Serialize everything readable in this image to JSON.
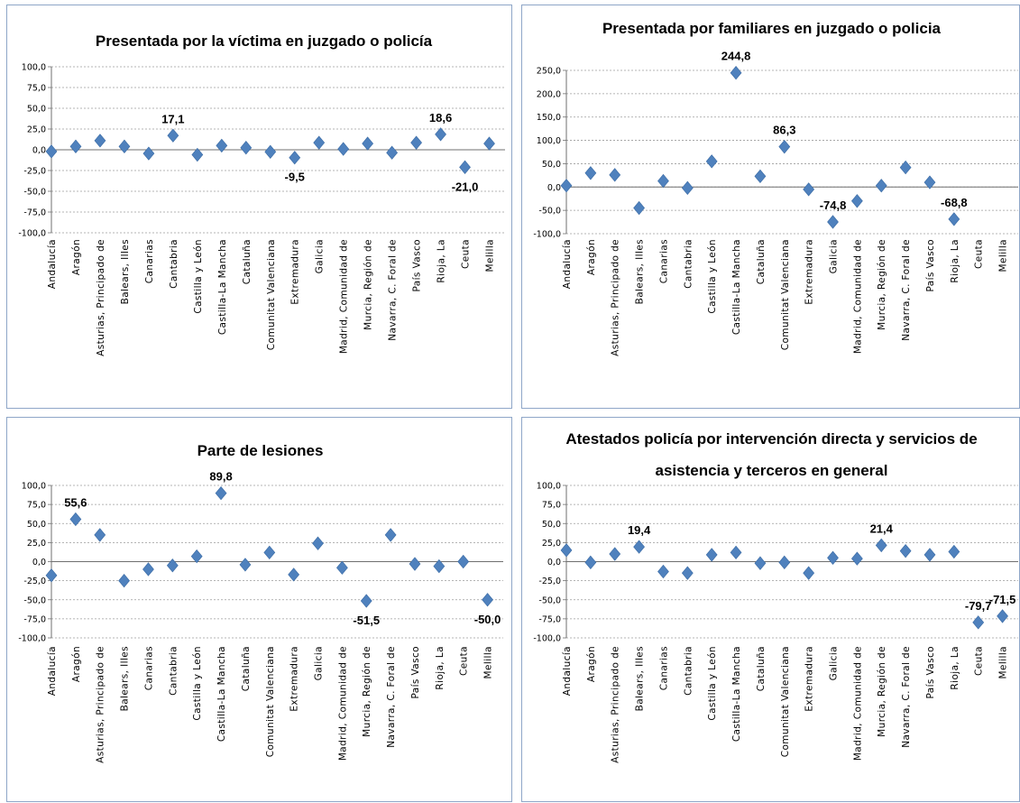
{
  "colors": {
    "marker": "#4f81bd",
    "grid": "#9c9c9c",
    "axis": "#6f6f6f",
    "border": "#8ea6c8"
  },
  "chart_data": [
    {
      "type": "scatter",
      "title_lines": [
        "Presentada por la víctima en juzgado o policía"
      ],
      "categories": [
        "Andalucía",
        "Aragón",
        "Asturias, Principado de",
        "Balears, Illes",
        "Canarias",
        "Cantabria",
        "Castilla y León",
        "Castilla-La Mancha",
        "Cataluña",
        "Comunitat Valenciana",
        "Extremadura",
        "Galicia",
        "Madrid, Comunidad de",
        "Murcia, Región de",
        "Navarra, C. Foral de",
        "País Vasco",
        "Rioja, La",
        "Ceuta",
        "Melilla"
      ],
      "values": [
        -2.0,
        4.0,
        11.0,
        4.0,
        -4.5,
        17.1,
        -6.0,
        5.0,
        2.5,
        -2.5,
        -9.5,
        8.5,
        1.0,
        7.5,
        -3.5,
        8.5,
        18.6,
        -21.0,
        7.5
      ],
      "labeled_points": [
        {
          "index": 5,
          "text": "17,1"
        },
        {
          "index": 10,
          "text": "-9,5"
        },
        {
          "index": 16,
          "text": "18,6"
        },
        {
          "index": 17,
          "text": "-21,0"
        }
      ],
      "ylim": [
        -100,
        100
      ],
      "yticks": [
        -100,
        -75,
        -50,
        -25,
        0,
        25,
        50,
        75,
        100
      ],
      "ytick_labels": [
        "-100,0",
        "-75,0",
        "-50,0",
        "-25,0",
        "0,0",
        "25,0",
        "50,0",
        "75,0",
        "100,0"
      ],
      "grid": true,
      "marker": "diamond"
    },
    {
      "type": "scatter",
      "title_lines": [
        "Presentada por familiares en juzgado o policia"
      ],
      "categories": [
        "Andalucía",
        "Aragón",
        "Asturias, Principado de",
        "Balears, Illes",
        "Canarias",
        "Cantabria",
        "Castilla y León",
        "Castilla-La Mancha",
        "Cataluña",
        "Comunitat Valenciana",
        "Extremadura",
        "Galicia",
        "Madrid, Comunidad de",
        "Murcia, Región de",
        "Navarra, C. Foral de",
        "País Vasco",
        "Rioja, La",
        "Ceuta",
        "Melilla"
      ],
      "values": [
        3.0,
        30.0,
        26.0,
        -45.0,
        13.0,
        -2.0,
        55.0,
        244.8,
        23.0,
        86.3,
        -5.0,
        -74.8,
        -30.0,
        3.0,
        42.0,
        10.0,
        -68.8,
        null,
        null
      ],
      "labeled_points": [
        {
          "index": 7,
          "text": "244,8"
        },
        {
          "index": 9,
          "text": "86,3"
        },
        {
          "index": 11,
          "text": "-74,8"
        },
        {
          "index": 16,
          "text": "-68,8"
        }
      ],
      "ylim": [
        -100,
        250
      ],
      "yticks": [
        -100,
        -50,
        0,
        50,
        100,
        150,
        200,
        250
      ],
      "ytick_labels": [
        "-100,0",
        "-50,0",
        "0,0",
        "50,0",
        "100,0",
        "150,0",
        "200,0",
        "250,0"
      ],
      "grid": true,
      "marker": "diamond"
    },
    {
      "type": "scatter",
      "title_lines": [
        "Parte de lesiones"
      ],
      "categories": [
        "Andalucía",
        "Aragón",
        "Asturias, Principado de",
        "Balears, Illes",
        "Canarias",
        "Cantabria",
        "Castilla y León",
        "Castilla-La Mancha",
        "Cataluña",
        "Comunitat Valenciana",
        "Extremadura",
        "Galicia",
        "Madrid, Comunidad de",
        "Murcia, Región de",
        "Navarra, C. Foral de",
        "País Vasco",
        "Rioja, La",
        "Ceuta",
        "Melilla"
      ],
      "values": [
        -18.0,
        55.6,
        35.0,
        -25.0,
        -10.0,
        -5.0,
        7.0,
        89.8,
        -4.0,
        12.0,
        -17.0,
        24.0,
        -8.0,
        -51.5,
        35.0,
        -3.0,
        -6.0,
        0.0,
        -50.0
      ],
      "labeled_points": [
        {
          "index": 1,
          "text": "55,6"
        },
        {
          "index": 7,
          "text": "89,8"
        },
        {
          "index": 13,
          "text": "-51,5"
        },
        {
          "index": 18,
          "text": "-50,0"
        }
      ],
      "ylim": [
        -100,
        100
      ],
      "yticks": [
        -100,
        -75,
        -50,
        -25,
        0,
        25,
        50,
        75,
        100
      ],
      "ytick_labels": [
        "-100,0",
        "-75,0",
        "-50,0",
        "-25,0",
        "0,0",
        "25,0",
        "50,0",
        "75,0",
        "100,0"
      ],
      "grid": true,
      "marker": "diamond"
    },
    {
      "type": "scatter",
      "title_lines": [
        "Atestados policía por intervención directa y servicios de",
        "asistencia y terceros en general"
      ],
      "categories": [
        "Andalucía",
        "Aragón",
        "Asturias, Principado de",
        "Balears, Illes",
        "Canarias",
        "Cantabria",
        "Castilla y León",
        "Castilla-La Mancha",
        "Cataluña",
        "Comunitat Valenciana",
        "Extremadura",
        "Galicia",
        "Madrid, Comunidad de",
        "Murcia, Región de",
        "Navarra, C. Foral de",
        "País Vasco",
        "Rioja, La",
        "Ceuta",
        "Melilla"
      ],
      "values": [
        15.0,
        -1.0,
        10.0,
        19.4,
        -13.0,
        -15.0,
        9.0,
        12.0,
        -2.0,
        -1.0,
        -15.0,
        5.0,
        4.0,
        21.4,
        14.0,
        9.0,
        13.0,
        -79.7,
        -71.5
      ],
      "labeled_points": [
        {
          "index": 3,
          "text": "19,4"
        },
        {
          "index": 13,
          "text": "21,4"
        },
        {
          "index": 17,
          "text": "-79,7"
        },
        {
          "index": 18,
          "text": "-71,5"
        }
      ],
      "ylim": [
        -100,
        100
      ],
      "yticks": [
        -100,
        -75,
        -50,
        -25,
        0,
        25,
        50,
        75,
        100
      ],
      "ytick_labels": [
        "-100,0",
        "-75,0",
        "-50,0",
        "-25,0",
        "0,0",
        "25,0",
        "50,0",
        "75,0",
        "100,0"
      ],
      "grid": true,
      "marker": "diamond"
    }
  ]
}
